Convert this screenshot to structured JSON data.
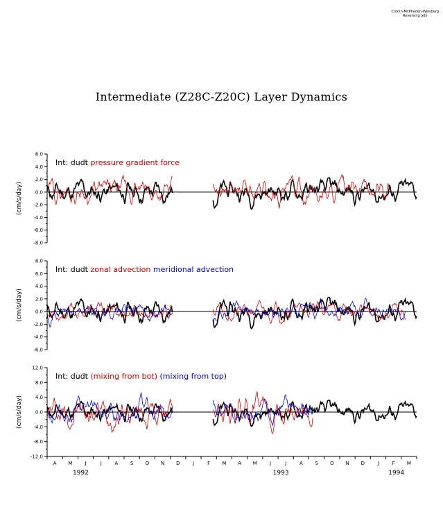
{
  "credit": [
    "Cronin-McPhaden-Weisberg",
    "Reversing Jets"
  ],
  "title": "Intermediate (Z28C-Z20C) Layer Dynamics",
  "chart_data": [
    {
      "type": "line",
      "ylabel": "(cm/s/day)",
      "ylim": [
        -8.0,
        6.0
      ],
      "yticks": [
        "6.0",
        "4.0",
        "2.0",
        "0.0",
        "-2.0",
        "-4.0",
        "-6.0",
        "-8.0"
      ],
      "ytick_values": [
        6,
        4,
        2,
        0,
        -2,
        -4,
        -6,
        -8
      ],
      "legend": [
        {
          "label": "Int:",
          "color": "#000000"
        },
        {
          "label": "dudt",
          "color": "#000000"
        },
        {
          "label": "pressure gradient force",
          "color": "#d00000"
        }
      ],
      "series": [
        {
          "name": "dudt",
          "color": "#000000",
          "seed": 11,
          "amp": 1.4,
          "segments": [
            [
              0,
              0.34
            ],
            [
              0.45,
              1.0
            ]
          ]
        },
        {
          "name": "pressure gradient force",
          "color": "#d00000",
          "seed": 29,
          "amp": 1.5,
          "segments": [
            [
              0,
              0.34
            ],
            [
              0.45,
              0.93
            ]
          ]
        }
      ]
    },
    {
      "type": "line",
      "ylabel": "(cm/s/day)",
      "ylim": [
        -6.0,
        8.0
      ],
      "yticks": [
        "8.0",
        "6.0",
        "4.0",
        "2.0",
        "0.0",
        "-2.0",
        "-4.0",
        "-6.0"
      ],
      "ytick_values": [
        8,
        6,
        4,
        2,
        0,
        -2,
        -4,
        -6
      ],
      "legend": [
        {
          "label": "Int:",
          "color": "#000000"
        },
        {
          "label": "dudt",
          "color": "#000000"
        },
        {
          "label": "zonal advection",
          "color": "#d00000"
        },
        {
          "label": "meridional advection",
          "color": "#0000cc"
        }
      ],
      "series": [
        {
          "name": "dudt",
          "color": "#000000",
          "seed": 11,
          "amp": 1.4,
          "segments": [
            [
              0,
              0.34
            ],
            [
              0.45,
              1.0
            ]
          ]
        },
        {
          "name": "zonal advection",
          "color": "#d00000",
          "seed": 53,
          "amp": 1.0,
          "segments": [
            [
              0,
              0.34
            ],
            [
              0.45,
              0.97
            ]
          ]
        },
        {
          "name": "meridional advection",
          "color": "#0000cc",
          "seed": 71,
          "amp": 1.0,
          "segments": [
            [
              0,
              0.34
            ],
            [
              0.45,
              0.97
            ]
          ]
        }
      ]
    },
    {
      "type": "line",
      "ylabel": "(cm/s/day)",
      "ylim": [
        -12.0,
        12.0
      ],
      "yticks": [
        "12.0",
        "8.0",
        "4.0",
        "0.0",
        "-4.0",
        "-8.0",
        "-12.0"
      ],
      "ytick_values": [
        12,
        8,
        4,
        0,
        -4,
        -8,
        -12
      ],
      "legend": [
        {
          "label": "Int:",
          "color": "#000000"
        },
        {
          "label": "dudt",
          "color": "#000000"
        },
        {
          "label": "(mixing from bot)",
          "color": "#d00000"
        },
        {
          "label": "(mixing from top)",
          "color": "#0000cc"
        }
      ],
      "series": [
        {
          "name": "dudt",
          "color": "#000000",
          "seed": 11,
          "amp": 2.0,
          "segments": [
            [
              0,
              0.34
            ],
            [
              0.45,
              1.0
            ]
          ]
        },
        {
          "name": "(mixing from bot)",
          "color": "#d00000",
          "seed": 97,
          "amp": 3.2,
          "segments": [
            [
              0,
              0.34
            ],
            [
              0.45,
              0.72
            ]
          ]
        },
        {
          "name": "(mixing from top)",
          "color": "#0000cc",
          "seed": 113,
          "amp": 2.4,
          "segments": [
            [
              0,
              0.34
            ],
            [
              0.45,
              0.72
            ]
          ]
        }
      ]
    }
  ],
  "x_axis": {
    "months": [
      "A",
      "M",
      "J",
      "J",
      "A",
      "S",
      "O",
      "N",
      "D",
      "J",
      "F",
      "M",
      "A",
      "M",
      "J",
      "J",
      "A",
      "S",
      "O",
      "N",
      "D",
      "J",
      "F",
      "M"
    ],
    "years": [
      "1992",
      "1993",
      "1994"
    ],
    "year_month_index": [
      2,
      15,
      22.5
    ]
  }
}
